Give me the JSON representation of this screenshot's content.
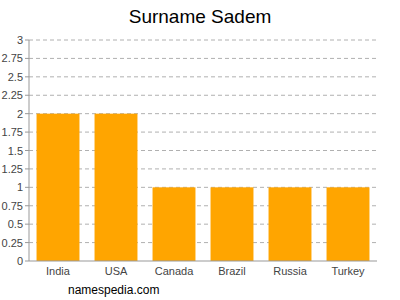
{
  "chart_data": {
    "type": "bar",
    "title": "Surname Sadem",
    "categories": [
      "India",
      "USA",
      "Canada",
      "Brazil",
      "Russia",
      "Turkey"
    ],
    "values": [
      2,
      2,
      1,
      1,
      1,
      1
    ],
    "color": "#ffa500",
    "ylim": [
      0,
      3
    ],
    "yticks": [
      0,
      0.25,
      0.5,
      0.75,
      1,
      1.25,
      1.5,
      1.75,
      2,
      2.25,
      2.5,
      2.75,
      3
    ],
    "grid": true,
    "source": "namespedia.com"
  }
}
